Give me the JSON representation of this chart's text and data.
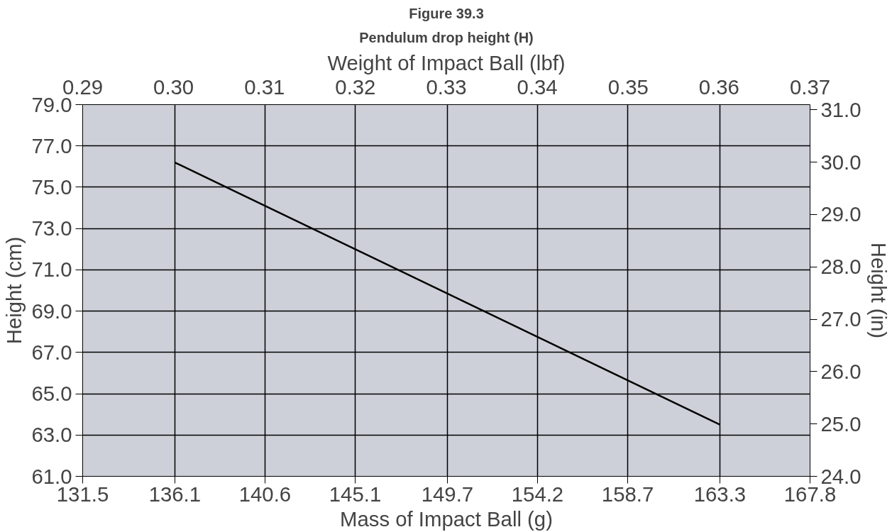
{
  "chart_data": {
    "type": "line",
    "title": "Figure 39.3",
    "subtitle": "Pendulum drop height (H)",
    "xlabel": "Mass of Impact Ball (g)",
    "x2label": "Weight of Impact Ball (lbf)",
    "ylabel": "Height (cm)",
    "y2label": "Height (in)",
    "series": [
      {
        "x": [
          136.1,
          163.3
        ],
        "values": [
          76.2,
          63.5
        ],
        "color": "#000000"
      }
    ],
    "xlim": [
      131.5,
      167.8
    ],
    "xticks": [
      131.5,
      136.1,
      140.6,
      145.1,
      149.7,
      154.2,
      158.7,
      163.3,
      167.8
    ],
    "x2lim": [
      0.29,
      0.37
    ],
    "x2ticks": [
      0.29,
      {
        "value": 0.3,
        "label": "0.30"
      },
      0.31,
      0.32,
      0.33,
      0.34,
      0.35,
      0.36,
      0.37
    ],
    "ylim": [
      61,
      79
    ],
    "yticks": [
      {
        "value": 61,
        "label": "61.0"
      },
      {
        "value": 63,
        "label": "63.0"
      },
      {
        "value": 65,
        "label": "65.0"
      },
      {
        "value": 67,
        "label": "67.0"
      },
      {
        "value": 69,
        "label": "69.0"
      },
      {
        "value": 71,
        "label": "71.0"
      },
      {
        "value": 73,
        "label": "73.0"
      },
      {
        "value": 75,
        "label": "75.0"
      },
      {
        "value": 77,
        "label": "77.0"
      },
      {
        "value": 79,
        "label": "79.0"
      }
    ],
    "y2lim": [
      24.0,
      31.1
    ],
    "y2ticks": [
      {
        "value": 24,
        "label": "24.0"
      },
      {
        "value": 25,
        "label": "25.0"
      },
      {
        "value": 26,
        "label": "26.0"
      },
      {
        "value": 27,
        "label": "27.0"
      },
      {
        "value": 28,
        "label": "28.0"
      },
      {
        "value": 29,
        "label": "29.0"
      },
      {
        "value": 30,
        "label": "30.0"
      },
      {
        "value": 31,
        "label": "31.0"
      }
    ],
    "grid": true,
    "line_style": "solid",
    "marker": "none"
  }
}
